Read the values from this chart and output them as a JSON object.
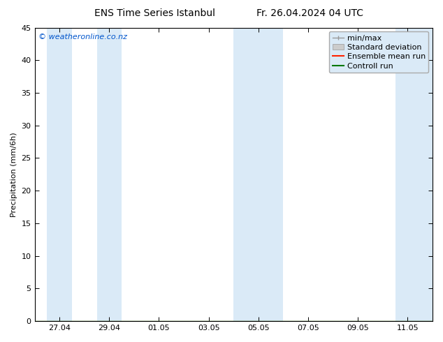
{
  "title_left": "ENS Time Series Istanbul",
  "title_right": "Fr. 26.04.2024 04 UTC",
  "ylabel": "Precipitation (mm/6h)",
  "ylim": [
    0,
    45
  ],
  "yticks": [
    0,
    5,
    10,
    15,
    20,
    25,
    30,
    35,
    40,
    45
  ],
  "copyright_text": "© weatheronline.co.nz",
  "background_color": "#ffffff",
  "plot_bg_color": "#ffffff",
  "shaded_band_color": "#daeaf7",
  "xtick_labels": [
    "27.04",
    "29.04",
    "01.05",
    "03.05",
    "05.05",
    "07.05",
    "09.05",
    "11.05"
  ],
  "xtick_positions_days": [
    1,
    3,
    5,
    7,
    9,
    11,
    13,
    15
  ],
  "xlim": [
    0,
    16
  ],
  "shaded_bands_days": [
    [
      0.5,
      1.5
    ],
    [
      2.5,
      3.5
    ],
    [
      8.0,
      9.0
    ],
    [
      9.0,
      10.0
    ],
    [
      14.5,
      16.0
    ]
  ],
  "legend_entries": [
    "min/max",
    "Standard deviation",
    "Ensemble mean run",
    "Controll run"
  ],
  "legend_colors_line": [
    "#999999",
    "#cccccc",
    "#ff2200",
    "#007700"
  ],
  "font_size_title": 10,
  "font_size_axis": 8,
  "font_size_ticks": 8,
  "font_size_copyright": 8,
  "font_size_legend": 8
}
